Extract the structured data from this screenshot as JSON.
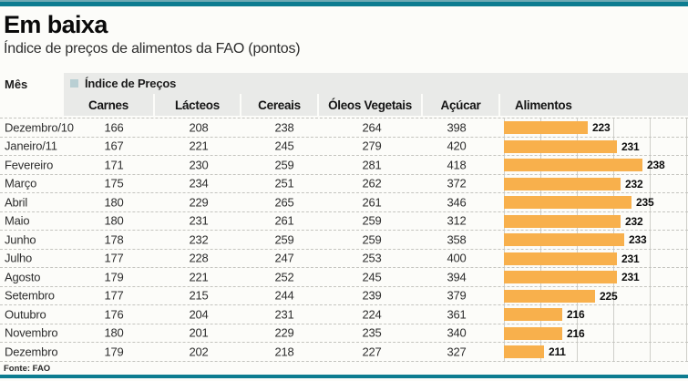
{
  "header": {
    "title": "Em baixa",
    "subtitle": "Índice de preços de alimentos da FAO (pontos)"
  },
  "table": {
    "mes_label": "Mês",
    "group_label": "Índice de Preços",
    "columns": [
      "Carnes",
      "Lácteos",
      "Cereais",
      "Óleos Vegetais",
      "Açúcar",
      "Alimentos"
    ]
  },
  "chart_data": {
    "type": "bar",
    "orientation": "horizontal",
    "title": "Em baixa",
    "subtitle": "Índice de preços de alimentos da FAO (pontos)",
    "categories": [
      "Dezembro/10",
      "Janeiro/11",
      "Fevereiro",
      "Março",
      "Abril",
      "Maio",
      "Junho",
      "Julho",
      "Agosto",
      "Setembro",
      "Outubro",
      "Novembro",
      "Dezembro"
    ],
    "series": [
      {
        "name": "Carnes",
        "values": [
          166,
          167,
          171,
          175,
          180,
          180,
          178,
          177,
          179,
          177,
          176,
          180,
          179
        ]
      },
      {
        "name": "Lácteos",
        "values": [
          208,
          221,
          230,
          234,
          229,
          231,
          232,
          228,
          221,
          215,
          204,
          201,
          202
        ]
      },
      {
        "name": "Cereais",
        "values": [
          238,
          245,
          259,
          251,
          265,
          261,
          259,
          247,
          252,
          244,
          231,
          229,
          218
        ]
      },
      {
        "name": "Óleos Vegetais",
        "values": [
          264,
          279,
          281,
          262,
          261,
          259,
          259,
          253,
          245,
          239,
          224,
          235,
          227
        ]
      },
      {
        "name": "Açúcar",
        "values": [
          398,
          420,
          418,
          372,
          346,
          312,
          358,
          400,
          394,
          379,
          361,
          340,
          327
        ]
      },
      {
        "name": "Alimentos",
        "values": [
          223,
          231,
          238,
          232,
          235,
          232,
          233,
          231,
          231,
          225,
          216,
          216,
          211
        ]
      }
    ],
    "plotted_series": "Alimentos",
    "xlim": [
      200,
      250
    ],
    "gridlines_every": 10,
    "grid": true,
    "legend_position": "none"
  },
  "footer": {
    "source": "Fonte: FAO"
  },
  "colors": {
    "accent_teal": "#0d7c90",
    "bar_orange": "#f8b04c",
    "header_band": "#e9eae8",
    "legend_square": "#b9cfd3",
    "gridline": "#cfcfca"
  }
}
